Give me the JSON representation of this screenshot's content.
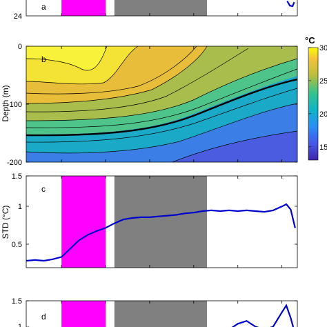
{
  "chart_data": [
    {
      "panel": "a",
      "type": "line",
      "ytick_labels": [
        "24"
      ],
      "ylim": [
        24,
        26
      ],
      "bands": [
        {
          "color": "#ff00ff",
          "x_start": 0.0,
          "x_end": 1.0
        },
        {
          "color": "#808080",
          "x_start": 1.2,
          "x_end": 3.3
        }
      ],
      "series": [
        {
          "color": "#0000cc",
          "x": [
            5.12,
            5.18,
            5.24,
            5.28
          ],
          "y": [
            25.3,
            24.9,
            24.85,
            25.2
          ]
        }
      ]
    },
    {
      "panel": "b",
      "type": "heatmap",
      "ylabel": "Depth (m)",
      "ytick_labels": [
        "0",
        "-100",
        "-200"
      ],
      "ylim": [
        -200,
        0
      ],
      "colorbar": {
        "unit": "°C",
        "ticks": [
          30,
          25,
          20,
          15
        ],
        "range": [
          13,
          30
        ]
      },
      "isotherm_depths": {
        "x": [
          -0.8,
          0.0,
          1.0,
          2.0,
          3.0,
          4.0,
          5.0,
          5.3
        ],
        "bold_isotherm_18": [
          -178,
          -176,
          -168,
          -148,
          -122,
          -95,
          -68,
          -55
        ],
        "surface_temp": [
          30,
          30,
          29.5,
          27.5,
          25.5,
          24.5,
          23.5,
          23
        ]
      }
    },
    {
      "panel": "c",
      "type": "line",
      "ylabel": "STD (°C)",
      "ytick_labels": [
        "1.5",
        "1",
        "0.5"
      ],
      "ylim": [
        0.3,
        1.5
      ],
      "bands": [
        {
          "color": "#ff00ff",
          "x_start": 0.0,
          "x_end": 1.0
        },
        {
          "color": "#808080",
          "x_start": 1.2,
          "x_end": 3.3
        }
      ],
      "series": [
        {
          "color": "#0000cc",
          "x": [
            -0.8,
            -0.6,
            -0.4,
            -0.2,
            0.0,
            0.2,
            0.4,
            0.6,
            0.8,
            1.0,
            1.2,
            1.4,
            1.6,
            1.8,
            2.0,
            2.2,
            2.4,
            2.6,
            2.8,
            3.0,
            3.2,
            3.4,
            3.6,
            3.8,
            4.0,
            4.2,
            4.4,
            4.6,
            4.8,
            5.0,
            5.1,
            5.2,
            5.3
          ],
          "y": [
            0.39,
            0.4,
            0.39,
            0.41,
            0.44,
            0.55,
            0.66,
            0.73,
            0.78,
            0.82,
            0.88,
            0.93,
            0.95,
            0.96,
            0.96,
            0.97,
            0.98,
            0.99,
            1.01,
            1.02,
            1.04,
            1.05,
            1.04,
            1.05,
            1.04,
            1.05,
            1.04,
            1.03,
            1.05,
            1.1,
            1.13,
            1.06,
            0.82
          ]
        }
      ]
    },
    {
      "panel": "d",
      "type": "line",
      "ytick_labels": [
        "1.5",
        "1"
      ],
      "ylim": [
        0.9,
        1.5
      ],
      "bands": [
        {
          "color": "#ff00ff",
          "x_start": 0.0,
          "x_end": 1.0
        },
        {
          "color": "#808080",
          "x_start": 1.2,
          "x_end": 3.3
        }
      ],
      "series": [
        {
          "color": "#0000cc",
          "x": [
            3.6,
            3.8,
            4.0,
            4.2,
            4.4,
            4.6,
            4.8,
            5.0,
            5.1,
            5.2,
            5.3
          ],
          "y": [
            0.95,
            1.0,
            1.1,
            1.15,
            1.05,
            1.0,
            1.05,
            1.3,
            1.42,
            1.2,
            0.92
          ]
        }
      ]
    }
  ]
}
